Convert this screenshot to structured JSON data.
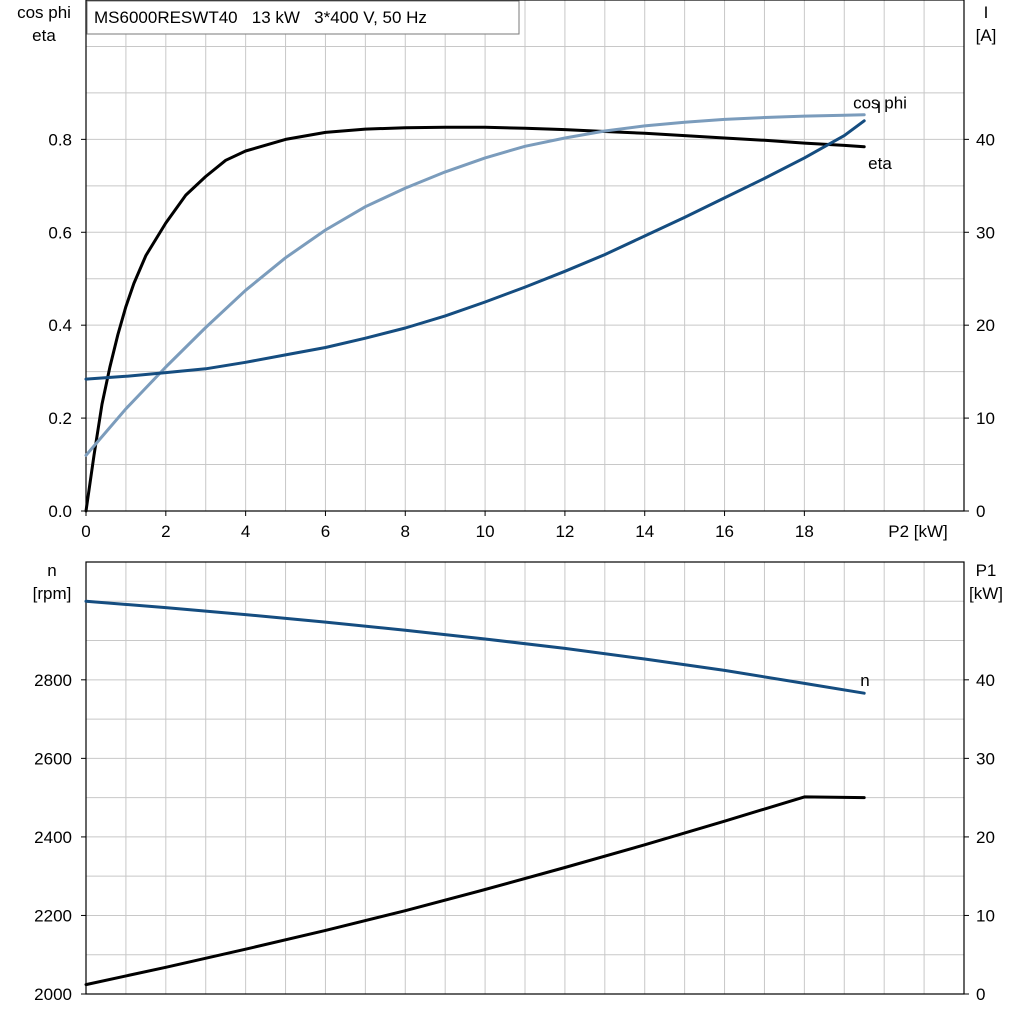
{
  "chart_data": [
    {
      "type": "line",
      "title": "MS6000RESWT40   13 kW   3*400 V, 50 Hz",
      "xlabel": "P2 [kW]",
      "xlim": [
        0,
        22
      ],
      "x_ticks": [
        0,
        2,
        4,
        6,
        8,
        10,
        12,
        14,
        16,
        18
      ],
      "ylabel_left": [
        "cos phi",
        "eta"
      ],
      "ylim_left": [
        0,
        1.1
      ],
      "y_ticks_left": [
        0.0,
        0.2,
        0.4,
        0.6,
        0.8
      ],
      "y_tick_labels_left": [
        "0.0",
        "0.2",
        "0.4",
        "0.6",
        "0.8"
      ],
      "ylabel_right": [
        "I",
        "[A]"
      ],
      "ylim_right": [
        0,
        55
      ],
      "y_ticks_right": [
        0,
        10,
        20,
        30,
        40
      ],
      "grid": true,
      "series": [
        {
          "name": "eta",
          "axis": "left",
          "color": "#000000",
          "x": [
            0,
            0.2,
            0.4,
            0.6,
            0.8,
            1.0,
            1.2,
            1.5,
            2,
            2.5,
            3,
            3.5,
            4,
            5,
            6,
            7,
            8,
            9,
            10,
            11,
            12,
            13,
            14,
            15,
            16,
            17,
            18,
            19,
            19.5
          ],
          "y": [
            0.0,
            0.12,
            0.23,
            0.31,
            0.38,
            0.44,
            0.49,
            0.55,
            0.62,
            0.68,
            0.72,
            0.755,
            0.775,
            0.8,
            0.815,
            0.822,
            0.825,
            0.826,
            0.826,
            0.824,
            0.821,
            0.817,
            0.813,
            0.808,
            0.803,
            0.798,
            0.792,
            0.787,
            0.784
          ]
        },
        {
          "name": "cos phi",
          "axis": "left",
          "color": "#7b9cbc",
          "x": [
            0,
            0.5,
            1,
            1.5,
            2,
            3,
            4,
            5,
            6,
            7,
            8,
            9,
            10,
            11,
            12,
            13,
            14,
            15,
            16,
            17,
            18,
            19,
            19.5
          ],
          "y": [
            0.12,
            0.17,
            0.22,
            0.265,
            0.31,
            0.395,
            0.475,
            0.545,
            0.605,
            0.655,
            0.695,
            0.73,
            0.76,
            0.785,
            0.803,
            0.818,
            0.829,
            0.837,
            0.843,
            0.847,
            0.85,
            0.852,
            0.853
          ]
        },
        {
          "name": "I",
          "axis": "right",
          "color": "#154d80",
          "x": [
            0,
            1,
            2,
            3,
            4,
            5,
            6,
            7,
            8,
            9,
            10,
            11,
            12,
            13,
            14,
            15,
            16,
            17,
            18,
            19,
            19.5
          ],
          "y": [
            14.2,
            14.5,
            14.9,
            15.3,
            16.0,
            16.8,
            17.6,
            18.6,
            19.7,
            21.0,
            22.5,
            24.1,
            25.8,
            27.6,
            29.6,
            31.6,
            33.7,
            35.8,
            38.0,
            40.4,
            42.0
          ]
        }
      ]
    },
    {
      "type": "line",
      "xlim": [
        0,
        22
      ],
      "x_ticks": [
        0,
        2,
        4,
        6,
        8,
        10,
        12,
        14,
        16,
        18
      ],
      "ylabel_left": [
        "n",
        "[rpm]"
      ],
      "ylim_left": [
        2000,
        3100
      ],
      "y_ticks_left": [
        2000,
        2200,
        2400,
        2600,
        2800
      ],
      "ylabel_right": [
        "P1",
        "[kW]"
      ],
      "ylim_right": [
        0,
        55
      ],
      "y_ticks_right": [
        0,
        10,
        20,
        30,
        40
      ],
      "grid": true,
      "series": [
        {
          "name": "n",
          "axis": "left",
          "color": "#154d80",
          "x": [
            0,
            2,
            4,
            6,
            8,
            10,
            12,
            14,
            16,
            18,
            19.5
          ],
          "y": [
            3000,
            2984,
            2966,
            2947,
            2926,
            2904,
            2880,
            2853,
            2824,
            2791,
            2766
          ]
        },
        {
          "name": "",
          "axis": "right",
          "color": "#000000",
          "x": [
            0,
            2,
            4,
            6,
            8,
            10,
            12,
            14,
            16,
            18,
            19.5
          ],
          "y": [
            1.2,
            3.4,
            5.7,
            8.1,
            10.6,
            13.3,
            16.1,
            19.0,
            22.0,
            25.1,
            25.0
          ]
        }
      ]
    }
  ]
}
